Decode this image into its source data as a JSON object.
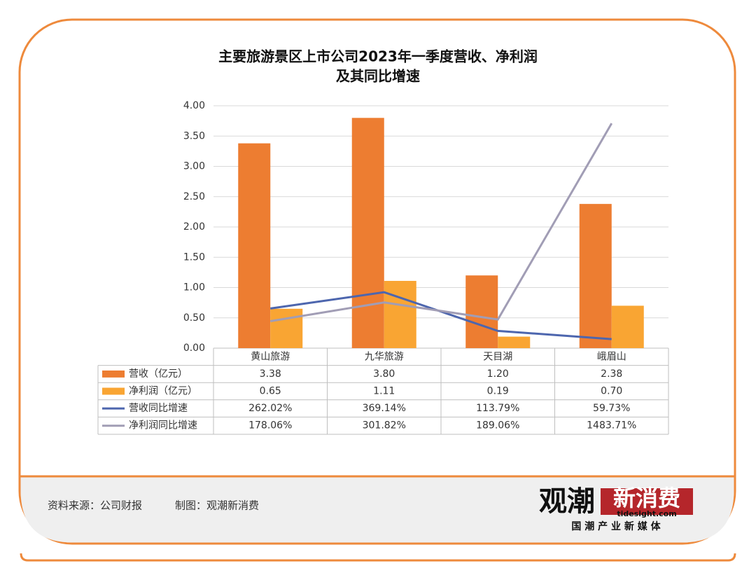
{
  "chart_data": {
    "type": "bar",
    "title": [
      "主要旅游景区上市公司2023年一季度营收、净利润",
      "及其同比增速"
    ],
    "categories": [
      "黄山旅游",
      "九华旅游",
      "天目湖",
      "峨眉山"
    ],
    "ylim": [
      0,
      4
    ],
    "yticks": [
      {
        "value": 0,
        "label": "0.00"
      },
      {
        "value": 0.5,
        "label": "0.50"
      },
      {
        "value": 1,
        "label": "1.00"
      },
      {
        "value": 1.5,
        "label": "1.50"
      },
      {
        "value": 2,
        "label": "2.00"
      },
      {
        "value": 2.5,
        "label": "2.50"
      },
      {
        "value": 3,
        "label": "3.00"
      },
      {
        "value": 3.5,
        "label": "3.50"
      },
      {
        "value": 4,
        "label": "4.00"
      }
    ],
    "y2lim": [
      0,
      1600
    ],
    "grid": true,
    "series": [
      {
        "name": "营收（亿元）",
        "type": "bar",
        "color": "#ED7D31",
        "values": [
          3.38,
          3.8,
          1.2,
          2.38
        ],
        "value_labels": [
          "3.38",
          "3.80",
          "1.20",
          "2.38"
        ]
      },
      {
        "name": "净利润（亿元）",
        "type": "bar",
        "color": "#F9A533",
        "values": [
          0.65,
          1.11,
          0.19,
          0.7
        ],
        "value_labels": [
          "0.65",
          "1.11",
          "0.19",
          "0.70"
        ]
      },
      {
        "name": "营收同比增速",
        "type": "line",
        "axis": "y2",
        "color": "#4D66AE",
        "values": [
          262.02,
          369.14,
          113.79,
          59.73
        ],
        "value_labels": [
          "262.02%",
          "369.14%",
          "113.79%",
          "59.73%"
        ]
      },
      {
        "name": "净利润同比增速",
        "type": "line",
        "axis": "y2",
        "color": "#A19DB5",
        "values": [
          178.06,
          301.82,
          189.06,
          1483.71
        ],
        "value_labels": [
          "178.06%",
          "301.82%",
          "189.06%",
          "1483.71%"
        ]
      }
    ]
  },
  "footer": {
    "source": "资料来源：公司财报",
    "maker": "制图：观潮新消费",
    "logo": {
      "name1": "观潮",
      "name2": "新消费",
      "domain": "tidesight.com",
      "slogan": "国 潮 产 业 新 媒 体"
    }
  }
}
